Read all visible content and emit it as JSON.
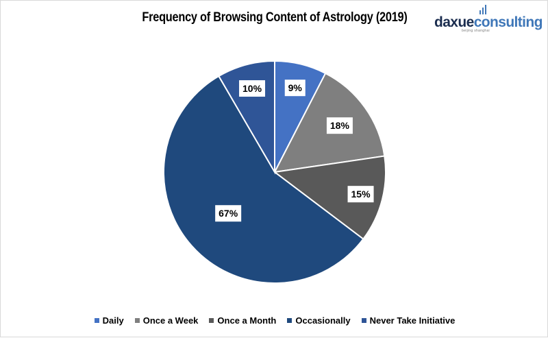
{
  "chart_data": {
    "type": "pie",
    "title": "Frequency of Browsing Content of Astrology (2019)",
    "categories": [
      "Daily",
      "Once a Week",
      "Once a Month",
      "Occasionally",
      "Never Take Initiative"
    ],
    "values": [
      9,
      18,
      15,
      67,
      10
    ],
    "labels": [
      "9%",
      "18%",
      "15%",
      "67%",
      "10%"
    ],
    "colors": [
      "#4472c4",
      "#7f7f7f",
      "#595959",
      "#1f497d",
      "#2f5597"
    ],
    "legend_position": "bottom"
  },
  "logo": {
    "word_part1": "daxue",
    "word_part2": "consulting",
    "tagline": "beijing shanghai"
  }
}
